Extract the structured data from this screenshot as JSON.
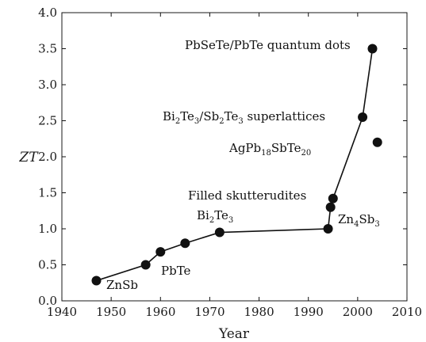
{
  "chart_data": {
    "type": "line",
    "title": "",
    "xlabel": "Year",
    "ylabel": "ZT",
    "xlim": [
      1940,
      2010
    ],
    "ylim": [
      0.0,
      4.0
    ],
    "xticks": [
      1940,
      1950,
      1960,
      1970,
      1980,
      1990,
      2000,
      2010
    ],
    "yticks": [
      "0.0",
      "0.5",
      "1.0",
      "1.5",
      "2.0",
      "2.5",
      "3.0",
      "3.5",
      "4.0"
    ],
    "grid": false,
    "series": [
      {
        "connected": true,
        "x": [
          1947,
          1957,
          1960,
          1965,
          1972,
          1994,
          1994.5,
          1995,
          2001,
          2003
        ],
        "y": [
          0.28,
          0.5,
          0.68,
          0.8,
          0.95,
          1.0,
          1.3,
          1.42,
          2.55,
          3.5
        ]
      },
      {
        "connected": false,
        "x": [
          2004
        ],
        "y": [
          2.2
        ]
      }
    ],
    "annotations": [
      {
        "id": "znsb",
        "parts": [
          {
            "t": "ZnSb"
          }
        ]
      },
      {
        "id": "pbte",
        "parts": [
          {
            "t": "PbTe"
          }
        ]
      },
      {
        "id": "bi2te3",
        "parts": [
          {
            "t": "Bi"
          },
          {
            "t": "2",
            "sub": true
          },
          {
            "t": "Te"
          },
          {
            "t": "3",
            "sub": true
          }
        ]
      },
      {
        "id": "zn4sb3",
        "parts": [
          {
            "t": "Zn"
          },
          {
            "t": "4",
            "sub": true
          },
          {
            "t": "Sb"
          },
          {
            "t": "3",
            "sub": true
          }
        ]
      },
      {
        "id": "skutterudites",
        "parts": [
          {
            "t": "Filled skutterudites"
          }
        ]
      },
      {
        "id": "agpbsbte",
        "parts": [
          {
            "t": "AgPb"
          },
          {
            "t": "18",
            "sub": true
          },
          {
            "t": "SbTe"
          },
          {
            "t": "20",
            "sub": true
          }
        ]
      },
      {
        "id": "superlattices",
        "parts": [
          {
            "t": "Bi"
          },
          {
            "t": "2",
            "sub": true
          },
          {
            "t": "Te"
          },
          {
            "t": "3",
            "sub": true
          },
          {
            "t": "/Sb"
          },
          {
            "t": "2",
            "sub": true
          },
          {
            "t": "Te"
          },
          {
            "t": "3",
            "sub": true
          },
          {
            "t": " superlattices"
          }
        ]
      },
      {
        "id": "quantum-dots",
        "parts": [
          {
            "t": "PbSeTe/PbTe quantum dots"
          }
        ]
      }
    ]
  },
  "colors": {
    "ink": "#111111",
    "background": "#ffffff"
  }
}
